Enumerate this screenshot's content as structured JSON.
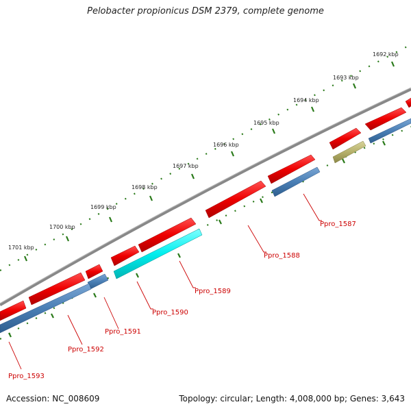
{
  "title": "Pelobacter propionicus DSM 2379, complete genome",
  "footer": {
    "accession": "Accession: NC_008609",
    "summary": "Topology: circular; Length: 4,008,000 bp; Genes: 3,643"
  },
  "ruler_labels": [
    "1692 kbp",
    "1693 kbp",
    "1694 kbp",
    "1695 kbp",
    "1696 kbp",
    "1697 kbp",
    "1698 kbp",
    "1699 kbp",
    "1700 kbp",
    "1701 kbp"
  ],
  "gene_labels": [
    "Ppro_1587",
    "Ppro_1588",
    "Ppro_1589",
    "Ppro_1590",
    "Ppro_1591",
    "Ppro_1592",
    "Ppro_1593"
  ],
  "colors": {
    "backbone": "#808080",
    "forward_gene": "#ee0000",
    "reverse_gene": "#4a7fb5",
    "cyan_gene": "#00eeee",
    "olive_gene": "#b5b06a",
    "tick": "#2a7a1a",
    "label": "#cc0000"
  }
}
